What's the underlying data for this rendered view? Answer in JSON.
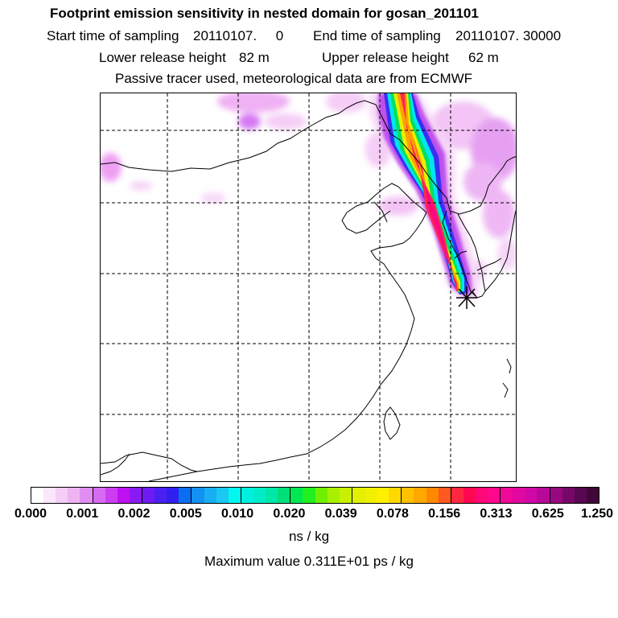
{
  "header": {
    "title": "Footprint emission sensitivity in nested domain for gosan_201101",
    "start_label": "Start time of sampling",
    "start_value": "20110107.     0",
    "end_label": "End time of sampling",
    "end_value": "20110107. 30000",
    "lower_label": "Lower release height",
    "lower_value": "82 m",
    "upper_label": "Upper release height",
    "upper_value": "62 m",
    "model_info": "Passive tracer used, meteorological data are from ECMWF"
  },
  "map": {
    "receptor_marker": "star-marker",
    "gridlines": "dashed"
  },
  "colorbar": {
    "ticks": [
      "0.000",
      "0.001",
      "0.002",
      "0.005",
      "0.010",
      "0.020",
      "0.039",
      "0.078",
      "0.156",
      "0.313",
      "0.625",
      "1.250"
    ],
    "colors": [
      "#ffffff",
      "#fbe6fb",
      "#f5cdf6",
      "#efb3f2",
      "#e08ef2",
      "#d66bf2",
      "#cc3df2",
      "#bf10f2",
      "#8a1af2",
      "#6e1af2",
      "#4a20f2",
      "#3020f0",
      "#0a6ef2",
      "#1490f2",
      "#18aef2",
      "#1ac8f2",
      "#00f8f0",
      "#00f0e0",
      "#00ecc8",
      "#00e8a8",
      "#00e07a",
      "#00e850",
      "#20f020",
      "#70f000",
      "#a8f000",
      "#c8f000",
      "#e0f000",
      "#f0f000",
      "#fff000",
      "#ffd800",
      "#ffc000",
      "#ffa800",
      "#ff8800",
      "#ff5820",
      "#ff2840",
      "#ff0850",
      "#ff0878",
      "#ff088c",
      "#f00898",
      "#e008a0",
      "#d008a8",
      "#b80898",
      "#980880",
      "#780868",
      "#580850",
      "#400838"
    ],
    "units": "ns / kg",
    "max_value": "Maximum value  0.311E+01 ps / kg"
  }
}
